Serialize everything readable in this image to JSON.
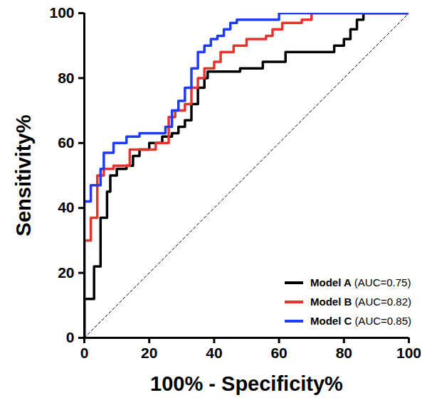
{
  "chart_data": {
    "type": "line",
    "x_label": "100% - Specificity%",
    "y_label": "Sensitivity%",
    "xlim": [
      0,
      100
    ],
    "ylim": [
      0,
      100
    ],
    "xticks": [
      0,
      20,
      40,
      60,
      80,
      100
    ],
    "yticks": [
      0,
      20,
      40,
      60,
      80,
      100
    ],
    "grid": false,
    "legend": "bottom-right",
    "series": [
      {
        "name": "Model A (AUC=0.75)",
        "color": "#000000",
        "x": [
          0,
          0,
          3,
          3,
          5,
          5,
          7,
          7,
          8,
          8,
          10,
          10,
          13,
          13,
          15,
          15,
          17,
          17,
          20,
          20,
          24,
          24,
          27,
          27,
          29,
          29,
          31,
          31,
          33,
          33,
          35,
          35,
          37,
          37,
          38,
          38,
          48,
          48,
          55,
          55,
          62,
          62,
          77,
          77,
          80,
          80,
          82,
          82,
          84,
          84,
          86,
          86,
          100
        ],
        "values": [
          0,
          12,
          12,
          22,
          22,
          37,
          37,
          45,
          45,
          50,
          50,
          52,
          52,
          53,
          53,
          56,
          56,
          58,
          58,
          60,
          60,
          62,
          62,
          63,
          63,
          65,
          65,
          67,
          67,
          72,
          72,
          77,
          77,
          80,
          80,
          82,
          82,
          83,
          83,
          85,
          85,
          88,
          88,
          90,
          90,
          92,
          92,
          95,
          95,
          98,
          98,
          100,
          100
        ]
      },
      {
        "name": "Model B (AUC=0.82)",
        "color": "#e8322b",
        "x": [
          0,
          0,
          2,
          2,
          4,
          4,
          6,
          6,
          9,
          9,
          14,
          14,
          22,
          22,
          26,
          26,
          28,
          28,
          31,
          31,
          33,
          33,
          35,
          35,
          37,
          37,
          40,
          40,
          42,
          42,
          46,
          46,
          50,
          50,
          56,
          56,
          58,
          58,
          61,
          61,
          67,
          67,
          70,
          70,
          100
        ],
        "values": [
          0,
          30,
          30,
          37,
          37,
          50,
          50,
          52,
          52,
          53,
          53,
          58,
          58,
          60,
          60,
          68,
          68,
          70,
          70,
          72,
          72,
          77,
          77,
          80,
          80,
          83,
          83,
          85,
          85,
          88,
          88,
          90,
          90,
          92,
          92,
          93,
          93,
          95,
          95,
          97,
          97,
          98,
          98,
          100,
          100
        ]
      },
      {
        "name": "Model C (AUC=0.85)",
        "color": "#1e3cf6",
        "x": [
          0,
          0,
          2,
          2,
          5,
          5,
          6,
          6,
          9,
          9,
          13,
          13,
          17,
          17,
          25,
          25,
          27,
          27,
          29,
          29,
          31,
          31,
          33,
          33,
          35,
          35,
          37,
          37,
          39,
          39,
          41,
          41,
          43,
          43,
          45,
          45,
          47,
          47,
          60,
          60,
          100
        ],
        "values": [
          0,
          42,
          42,
          47,
          47,
          52,
          52,
          57,
          57,
          60,
          60,
          62,
          62,
          63,
          63,
          65,
          65,
          70,
          70,
          73,
          73,
          77,
          77,
          83,
          83,
          88,
          88,
          90,
          90,
          92,
          92,
          93,
          93,
          95,
          95,
          97,
          97,
          98,
          98,
          100,
          100
        ]
      }
    ]
  }
}
